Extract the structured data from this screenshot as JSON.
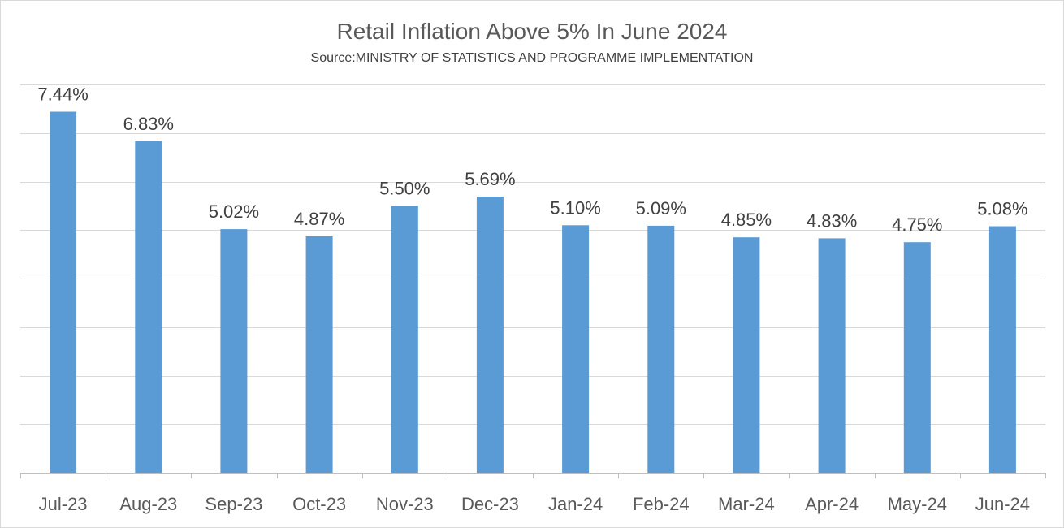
{
  "chart_data": {
    "type": "bar",
    "title": "Retail Inflation Above 5% In June 2024",
    "subtitle": "Source:MINISTRY OF STATISTICS AND PROGRAMME IMPLEMENTATION",
    "xlabel": "",
    "ylabel": "",
    "categories": [
      "Jul-23",
      "Aug-23",
      "Sep-23",
      "Oct-23",
      "Nov-23",
      "Dec-23",
      "Jan-24",
      "Feb-24",
      "Mar-24",
      "Apr-24",
      "May-24",
      "Jun-24"
    ],
    "values": [
      7.44,
      6.83,
      5.02,
      4.87,
      5.5,
      5.69,
      5.1,
      5.09,
      4.85,
      4.83,
      4.75,
      5.08
    ],
    "data_labels": [
      "7.44%",
      "6.83%",
      "5.02%",
      "4.87%",
      "5.50%",
      "5.69%",
      "5.10%",
      "5.09%",
      "4.85%",
      "4.83%",
      "4.75%",
      "5.08%"
    ],
    "ylim": [
      0,
      8
    ],
    "y_gridlines": [
      1,
      2,
      3,
      4,
      5,
      6,
      7,
      8
    ],
    "y_tick_labels_visible": false,
    "grid": true,
    "legend": "none",
    "colors": {
      "bar": "#5b9bd5",
      "grid": "#d9d9d9",
      "axis": "#bfbfbf",
      "title": "#595959",
      "label": "#404040"
    }
  }
}
